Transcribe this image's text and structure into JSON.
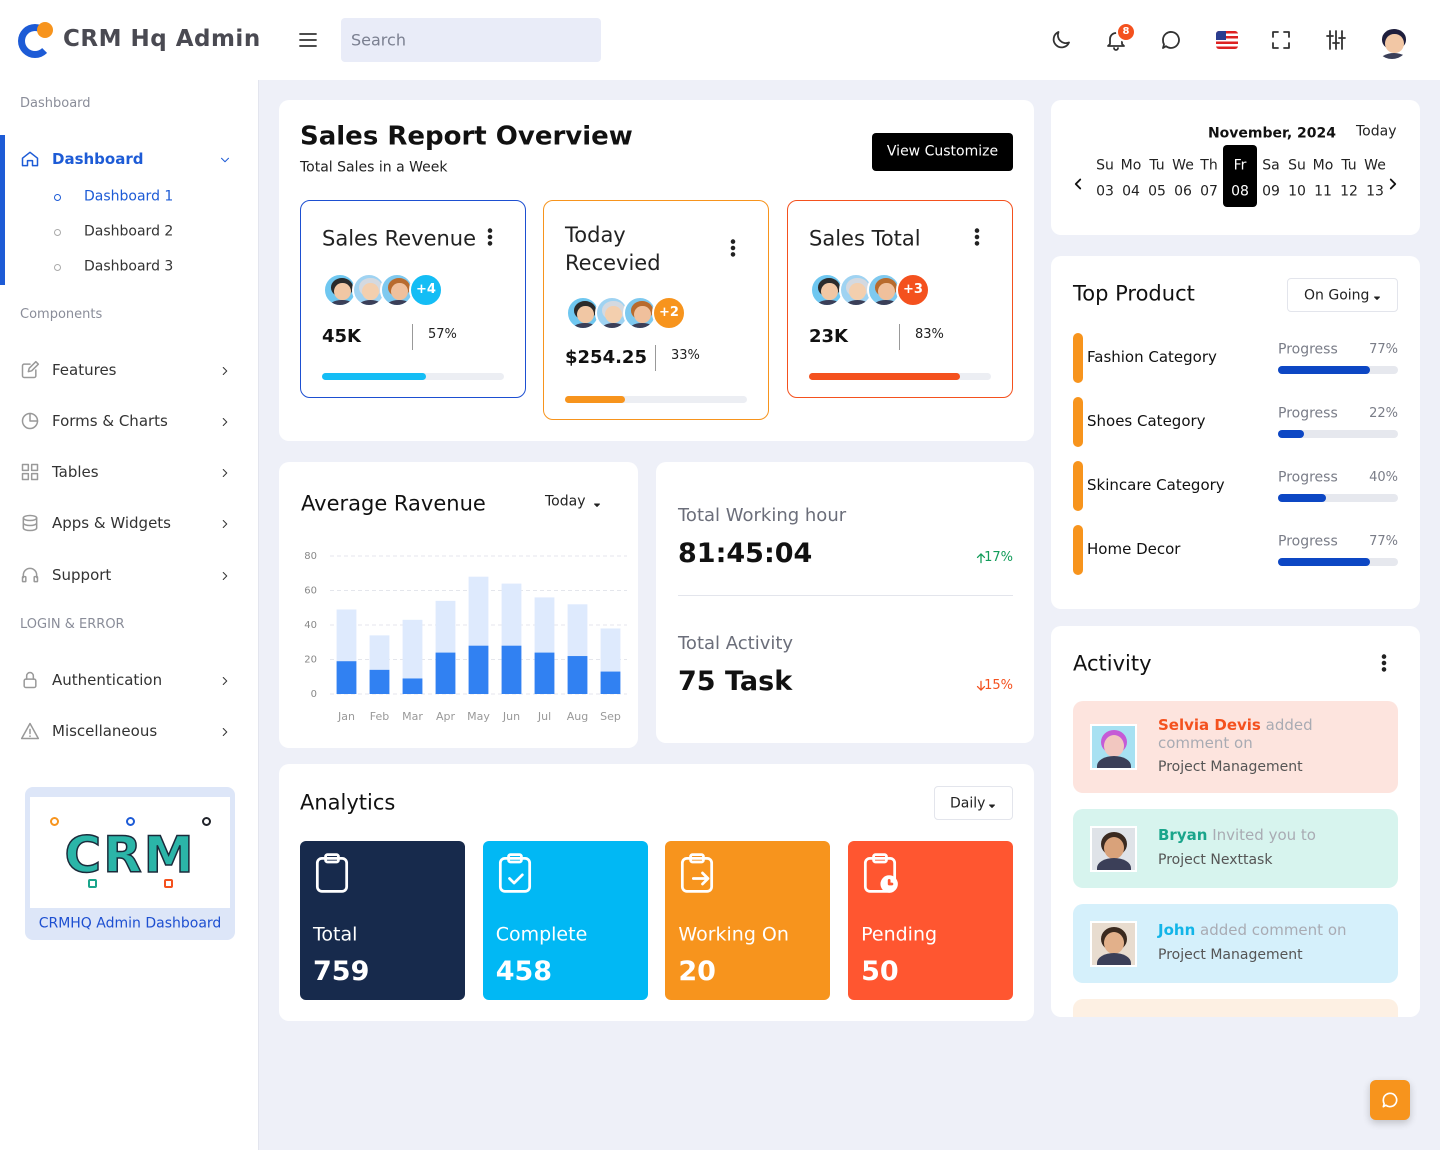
{
  "header": {
    "brand": "CRM Hq Admin",
    "search_placeholder": "Search",
    "notifications": 8
  },
  "sidebar": {
    "sections": [
      {
        "title": "Dashboard",
        "items": [
          {
            "label": "Dashboard",
            "active": true,
            "active_child": 0,
            "children": [
              "Dashboard 1",
              "Dashboard 2",
              "Dashboard 3"
            ]
          }
        ]
      },
      {
        "title": "Components",
        "items": [
          {
            "label": "Features"
          },
          {
            "label": "Forms & Charts"
          },
          {
            "label": "Tables"
          },
          {
            "label": "Apps & Widgets"
          },
          {
            "label": "Support"
          }
        ]
      },
      {
        "title": "LOGIN & ERROR",
        "items": [
          {
            "label": "Authentication"
          },
          {
            "label": "Miscellaneous"
          }
        ]
      }
    ],
    "promo": {
      "image_text": "CRM",
      "caption": "CRMHQ Admin Dashboard"
    }
  },
  "sales_report": {
    "title": "Sales Report Overview",
    "subtitle": "Total Sales in a Week",
    "button": "View Customize",
    "cards": [
      {
        "title": "Sales Revenue",
        "more": "+4",
        "value": "45K",
        "progress": 57,
        "progress_label": "57%",
        "border": "#1d4fd1",
        "accent": "#14bdf5"
      },
      {
        "title": "Today Recevied",
        "more": "+2",
        "value": "$254.25",
        "progress": 33,
        "progress_label": "33%",
        "border": "#f7941d",
        "accent": "#f7941d"
      },
      {
        "title": "Sales Total",
        "more": "+3",
        "value": "23K",
        "progress": 83,
        "progress_label": "83%",
        "border": "#f4511e",
        "accent": "#f4511e"
      }
    ]
  },
  "chart_data": {
    "type": "bar",
    "title": "Average Ravenue",
    "dropdown": "Today",
    "categories": [
      "Jan",
      "Feb",
      "Mar",
      "Apr",
      "May",
      "Jun",
      "Jul",
      "Aug",
      "Sep"
    ],
    "series": [
      {
        "color": "#deeafd",
        "values": [
          49,
          34,
          43,
          54,
          68,
          64,
          56,
          52,
          38
        ]
      },
      {
        "color": "#3181f2",
        "values": [
          19,
          14,
          9,
          24,
          28,
          28,
          24,
          22,
          13
        ]
      }
    ],
    "ylim": [
      0,
      80
    ],
    "yticks": [
      0,
      20,
      40,
      60,
      80
    ],
    "grid": true
  },
  "work_stats": [
    {
      "label": "Total Working hour",
      "value": "81:45:04",
      "change": "17%",
      "direction": "up"
    },
    {
      "label": "Total Activity",
      "value": "75 Task",
      "change": "15%",
      "direction": "down"
    }
  ],
  "analytics": {
    "title": "Analytics",
    "dropdown": "Daily",
    "tiles": [
      {
        "label": "Total",
        "value": 759,
        "color": "#172a4c"
      },
      {
        "label": "Complete",
        "value": 458,
        "color": "#01b8f4"
      },
      {
        "label": "Working On",
        "value": 20,
        "color": "#f7941d"
      },
      {
        "label": "Pending",
        "value": 50,
        "color": "#ff5630"
      }
    ]
  },
  "calendar": {
    "month": "November, 2024",
    "today": "Today",
    "selected": 5,
    "days": [
      {
        "dow": "Su",
        "date": "03"
      },
      {
        "dow": "Mo",
        "date": "04"
      },
      {
        "dow": "Tu",
        "date": "05"
      },
      {
        "dow": "We",
        "date": "06"
      },
      {
        "dow": "Th",
        "date": "07"
      },
      {
        "dow": "Fr",
        "date": "08"
      },
      {
        "dow": "Sa",
        "date": "09"
      },
      {
        "dow": "Su",
        "date": "10"
      },
      {
        "dow": "Mo",
        "date": "11"
      },
      {
        "dow": "Tu",
        "date": "12"
      },
      {
        "dow": "We",
        "date": "13"
      }
    ]
  },
  "top_product": {
    "title": "Top Product",
    "dropdown": "On Going",
    "items": [
      {
        "name": "Fashion Category",
        "label": "Progress",
        "value": 77,
        "value_label": "77%"
      },
      {
        "name": "Shoes Category",
        "label": "Progress",
        "value": 22,
        "value_label": "22%"
      },
      {
        "name": "Skincare Category",
        "label": "Progress",
        "value": 40,
        "value_label": "40%"
      },
      {
        "name": "Home Decor",
        "label": "Progress",
        "value": 77,
        "value_label": "77%"
      }
    ]
  },
  "activity": {
    "title": "Activity",
    "items": [
      {
        "name": "Selvia Devis",
        "action": "added comment on",
        "target": "Project Management",
        "color": "#f4511e",
        "bg": "#fde4de"
      },
      {
        "name": "Bryan",
        "action": "Invited you to",
        "target": "Project Nexttask",
        "color": "#1aa58b",
        "bg": "#d7f4ee"
      },
      {
        "name": "John",
        "action": "added comment on",
        "target": "Project Management",
        "color": "#13b5e8",
        "bg": "#d5f0fb"
      }
    ]
  }
}
